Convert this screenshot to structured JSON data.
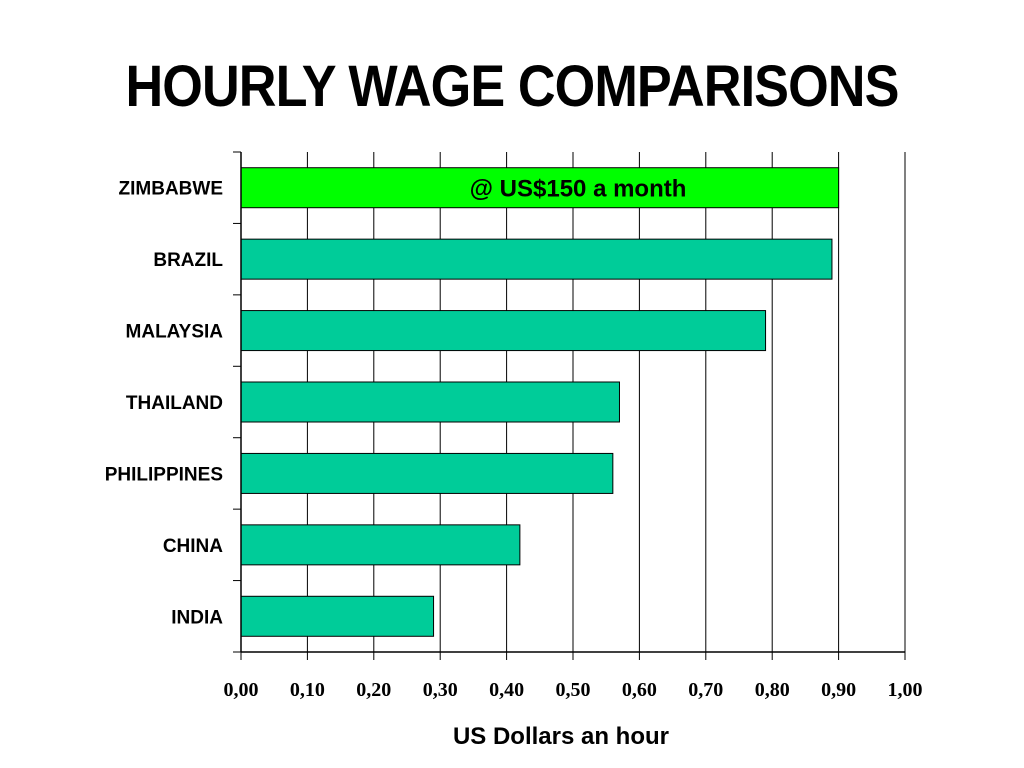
{
  "colors": {
    "bar": "#00CC99",
    "highlight": "#00FF00",
    "axis": "#000000"
  },
  "chart_data": {
    "type": "bar",
    "orientation": "horizontal",
    "title": "HOURLY WAGE COMPARISONS",
    "xlabel": "US Dollars an hour",
    "ylabel": "",
    "categories": [
      "ZIMBABWE",
      "BRAZIL",
      "MALAYSIA",
      "THAILAND",
      "PHILIPPINES",
      "CHINA",
      "INDIA"
    ],
    "values": [
      0.9,
      0.89,
      0.79,
      0.57,
      0.56,
      0.42,
      0.29
    ],
    "highlight_category": "ZIMBABWE",
    "xlim": [
      0,
      1.0
    ],
    "xticks": [
      "0,00",
      "0,10",
      "0,20",
      "0,30",
      "0,40",
      "0,50",
      "0,60",
      "0,70",
      "0,80",
      "0,90",
      "1,00"
    ],
    "grid": "vertical",
    "legend": "none",
    "annotation": "@ US$150 a month"
  }
}
